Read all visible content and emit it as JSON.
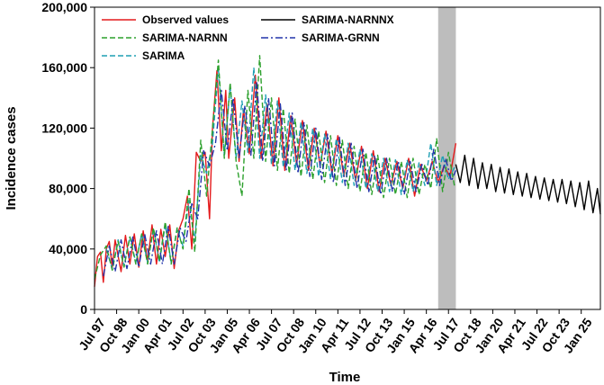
{
  "chart_data": {
    "type": "line",
    "title": "",
    "xlabel": "Time",
    "ylabel": "Incidence cases",
    "ylim": [
      0,
      200000
    ],
    "yticks": [
      0,
      40000,
      80000,
      120000,
      160000,
      200000
    ],
    "ytick_labels": [
      "0",
      "40,000",
      "80,000",
      "120,000",
      "160,000",
      "200,000"
    ],
    "xlim": [
      "1997-07",
      "2026-02"
    ],
    "xtick_labels": [
      "Jul 97",
      "Oct 98",
      "Jan 00",
      "Apr 01",
      "Jul 02",
      "Oct 03",
      "Jan 05",
      "Apr 06",
      "Jul 07",
      "Oct 08",
      "Jan 10",
      "Apr 11",
      "Jul 12",
      "Oct 13",
      "Jan 15",
      "Apr 16",
      "Jul 17",
      "Oct 18",
      "Jan 20",
      "Apr 21",
      "Jul 22",
      "Oct 23",
      "Jan 25"
    ],
    "xticks": [
      "1997-07",
      "1998-10",
      "2000-01",
      "2001-04",
      "2002-07",
      "2003-10",
      "2005-01",
      "2006-04",
      "2007-07",
      "2008-10",
      "2010-01",
      "2011-04",
      "2012-07",
      "2013-10",
      "2015-01",
      "2016-04",
      "2017-07",
      "2018-10",
      "2020-01",
      "2021-04",
      "2022-07",
      "2023-10",
      "2025-01"
    ],
    "shaded_region": [
      "2016-12",
      "2017-12"
    ],
    "legend_placement": "top-left",
    "grid": false,
    "series": [
      {
        "name": "Observed values",
        "color": "#e41a1c",
        "style": "solid",
        "x": [
          "1997-07",
          "1997-09",
          "1997-11",
          "1998-01",
          "1998-03",
          "1998-05",
          "1998-07",
          "1998-09",
          "1999-01",
          "1999-04",
          "1999-07",
          "1999-10",
          "2000-01",
          "2000-04",
          "2000-07",
          "2000-10",
          "2001-01",
          "2001-04",
          "2001-07",
          "2001-10",
          "2002-01",
          "2002-04",
          "2002-07",
          "2002-10",
          "2003-01",
          "2003-04",
          "2003-07",
          "2003-10",
          "2004-01",
          "2004-03",
          "2004-06",
          "2004-09",
          "2004-12",
          "2005-02",
          "2005-06",
          "2005-09",
          "2005-12",
          "2006-04",
          "2006-08",
          "2006-12",
          "2007-04",
          "2007-08",
          "2007-12",
          "2008-04",
          "2008-08",
          "2008-12",
          "2009-04",
          "2009-08",
          "2009-12",
          "2010-04",
          "2010-08",
          "2010-12",
          "2011-04",
          "2011-08",
          "2011-12",
          "2012-04",
          "2012-08",
          "2012-12",
          "2013-04",
          "2013-08",
          "2013-12",
          "2014-04",
          "2014-08",
          "2014-12",
          "2015-04",
          "2015-08",
          "2015-12",
          "2016-04",
          "2016-08",
          "2016-12",
          "2017-04",
          "2017-08",
          "2017-12"
        ],
        "y": [
          15000,
          35000,
          38000,
          18000,
          40000,
          45000,
          28000,
          46000,
          25000,
          49000,
          30000,
          50000,
          28000,
          52000,
          32000,
          56000,
          30000,
          53000,
          35000,
          56000,
          27000,
          52000,
          60000,
          75000,
          40000,
          104000,
          98000,
          104000,
          60000,
          120000,
          158000,
          105000,
          145000,
          100000,
          140000,
          98000,
          132000,
          103000,
          155000,
          100000,
          136000,
          95000,
          140000,
          92000,
          128000,
          96000,
          125000,
          92000,
          120000,
          95000,
          118000,
          90000,
          115000,
          88000,
          110000,
          85000,
          108000,
          80000,
          105000,
          78000,
          100000,
          82000,
          98000,
          80000,
          100000,
          75000,
          96000,
          85000,
          98000,
          84000,
          95000,
          88000,
          110000
        ]
      },
      {
        "name": "SARIMA-NARNNX",
        "color": "#000000",
        "style": "solid",
        "x": [
          "2017-12",
          "2018-03",
          "2018-06",
          "2018-09",
          "2018-12",
          "2019-03",
          "2019-06",
          "2019-09",
          "2019-12",
          "2020-03",
          "2020-06",
          "2020-09",
          "2020-12",
          "2021-03",
          "2021-06",
          "2021-09",
          "2021-12",
          "2022-03",
          "2022-06",
          "2022-09",
          "2022-12",
          "2023-03",
          "2023-06",
          "2023-09",
          "2023-12",
          "2024-03",
          "2024-06",
          "2024-09",
          "2024-12",
          "2025-03",
          "2025-06",
          "2025-09",
          "2025-12",
          "2026-02"
        ],
        "y": [
          96000,
          84000,
          102000,
          82000,
          100000,
          80000,
          97000,
          80000,
          96000,
          78000,
          94000,
          77000,
          93000,
          76000,
          91000,
          75000,
          90000,
          74000,
          88000,
          73000,
          87000,
          72000,
          86000,
          71000,
          86000,
          70000,
          85000,
          68000,
          84000,
          66000,
          85000,
          64000,
          80000,
          63000
        ]
      },
      {
        "name": "SARIMA-NARNN",
        "color": "#2ca02c",
        "style": "dashed",
        "x": [
          "1997-07",
          "1997-11",
          "1998-03",
          "1998-07",
          "1998-11",
          "1999-03",
          "1999-07",
          "1999-11",
          "2000-03",
          "2000-07",
          "2000-11",
          "2001-03",
          "2001-07",
          "2001-11",
          "2002-03",
          "2002-07",
          "2002-11",
          "2003-03",
          "2003-07",
          "2003-11",
          "2004-03",
          "2004-07",
          "2004-11",
          "2005-03",
          "2005-07",
          "2005-11",
          "2006-03",
          "2006-07",
          "2006-11",
          "2007-03",
          "2007-07",
          "2007-11",
          "2008-03",
          "2008-07",
          "2008-11",
          "2009-03",
          "2009-07",
          "2009-11",
          "2010-03",
          "2010-07",
          "2010-11",
          "2011-03",
          "2011-07",
          "2011-11",
          "2012-03",
          "2012-07",
          "2012-11",
          "2013-03",
          "2013-07",
          "2013-11",
          "2014-03",
          "2014-07",
          "2014-11",
          "2015-03",
          "2015-07",
          "2015-11",
          "2016-03",
          "2016-07",
          "2016-11",
          "2017-03",
          "2017-07",
          "2017-11"
        ],
        "y": [
          20000,
          36000,
          42000,
          26000,
          45000,
          28000,
          48000,
          30000,
          50000,
          30000,
          54000,
          32000,
          58000,
          30000,
          54000,
          40000,
          80000,
          38000,
          112000,
          75000,
          120000,
          165000,
          100000,
          150000,
          98000,
          75000,
          145000,
          100000,
          168000,
          98000,
          140000,
          92000,
          133000,
          90000,
          126000,
          88000,
          122000,
          86000,
          118000,
          84000,
          115000,
          82000,
          112000,
          80000,
          108000,
          78000,
          104000,
          76000,
          102000,
          74000,
          100000,
          76000,
          98000,
          74000,
          100000,
          76000,
          96000,
          80000,
          113000,
          78000,
          104000,
          82000
        ]
      },
      {
        "name": "SARIMA-GRNN",
        "color": "#2233aa",
        "style": "dashdot",
        "x": [
          "1998-01",
          "1998-05",
          "1998-09",
          "1999-01",
          "1999-05",
          "1999-09",
          "2000-01",
          "2000-05",
          "2000-09",
          "2001-01",
          "2001-05",
          "2001-09",
          "2002-01",
          "2002-05",
          "2002-09",
          "2003-01",
          "2003-05",
          "2003-09",
          "2004-01",
          "2004-05",
          "2004-09",
          "2005-01",
          "2005-05",
          "2005-09",
          "2006-01",
          "2006-05",
          "2006-09",
          "2007-01",
          "2007-05",
          "2007-09",
          "2008-01",
          "2008-05",
          "2008-09",
          "2009-01",
          "2009-05",
          "2009-09",
          "2010-01",
          "2010-05",
          "2010-09",
          "2011-01",
          "2011-05",
          "2011-09",
          "2012-01",
          "2012-05",
          "2012-09",
          "2013-01",
          "2013-05",
          "2013-09",
          "2014-01",
          "2014-05",
          "2014-09",
          "2015-01",
          "2015-05",
          "2015-09",
          "2016-01",
          "2016-05",
          "2016-09",
          "2017-01",
          "2017-05",
          "2017-09",
          "2017-12"
        ],
        "y": [
          22000,
          42000,
          25000,
          46000,
          27000,
          48000,
          28000,
          50000,
          30000,
          52000,
          30000,
          55000,
          30000,
          54000,
          45000,
          70000,
          60000,
          105000,
          95000,
          110000,
          145000,
          105000,
          140000,
          100000,
          135000,
          102000,
          150000,
          98000,
          140000,
          95000,
          136000,
          92000,
          130000,
          90000,
          124000,
          88000,
          120000,
          86000,
          116000,
          84000,
          114000,
          82000,
          110000,
          80000,
          106000,
          78000,
          102000,
          76000,
          100000,
          78000,
          98000,
          76000,
          98000,
          78000,
          96000,
          82000,
          106000,
          82000,
          100000,
          85000,
          92000
        ]
      },
      {
        "name": "SARIMA",
        "color": "#1f9fb4",
        "style": "dashed",
        "x": [
          "1998-03",
          "1998-07",
          "1998-11",
          "1999-03",
          "1999-07",
          "1999-11",
          "2000-03",
          "2000-07",
          "2000-11",
          "2001-03",
          "2001-07",
          "2001-11",
          "2002-03",
          "2002-07",
          "2002-11",
          "2003-03",
          "2003-07",
          "2003-11",
          "2004-03",
          "2004-07",
          "2004-11",
          "2005-03",
          "2005-07",
          "2005-11",
          "2006-03",
          "2006-07",
          "2006-11",
          "2007-03",
          "2007-07",
          "2007-11",
          "2008-03",
          "2008-07",
          "2008-11",
          "2009-03",
          "2009-07",
          "2009-11",
          "2010-03",
          "2010-07",
          "2010-11",
          "2011-03",
          "2011-07",
          "2011-11",
          "2012-03",
          "2012-07",
          "2012-11",
          "2013-03",
          "2013-07",
          "2013-11",
          "2014-03",
          "2014-07",
          "2014-11",
          "2015-03",
          "2015-07",
          "2015-11",
          "2016-03",
          "2016-07",
          "2016-11",
          "2017-03",
          "2017-07",
          "2017-11"
        ],
        "y": [
          40000,
          27000,
          46000,
          29000,
          48000,
          31000,
          50000,
          31000,
          53000,
          31000,
          56000,
          31000,
          53000,
          42000,
          72000,
          45000,
          102000,
          90000,
          110000,
          160000,
          102000,
          148000,
          100000,
          138000,
          104000,
          160000,
          100000,
          142000,
          96000,
          138000,
          94000,
          130000,
          92000,
          124000,
          90000,
          120000,
          88000,
          116000,
          86000,
          113000,
          84000,
          110000,
          82000,
          106000,
          80000,
          103000,
          78000,
          100000,
          78000,
          99000,
          76000,
          99000,
          78000,
          97000,
          82000,
          110000,
          82000,
          102000,
          86000,
          94000
        ]
      }
    ]
  }
}
